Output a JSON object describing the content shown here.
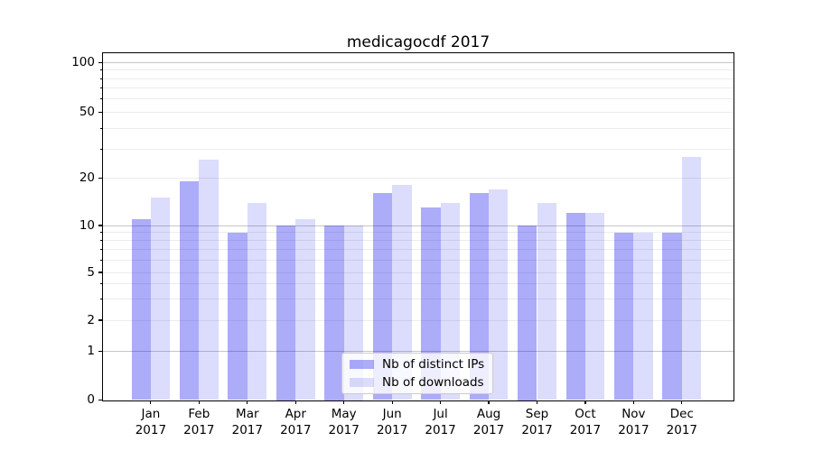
{
  "chart_data": {
    "type": "bar",
    "title": "medicagocdf 2017",
    "categories": [
      "Jan",
      "Feb",
      "Mar",
      "Apr",
      "May",
      "Jun",
      "Jul",
      "Aug",
      "Sep",
      "Oct",
      "Nov",
      "Dec"
    ],
    "year_label": "2017",
    "series": [
      {
        "name": "Nb of distinct IPs",
        "values": [
          11,
          19,
          9,
          10,
          10,
          16,
          13,
          16,
          10,
          12,
          9,
          9
        ],
        "color": "rgba(13,13,235,0.34)"
      },
      {
        "name": "Nb of downloads",
        "values": [
          15,
          26,
          14,
          11,
          10,
          18,
          14,
          17,
          14,
          12,
          9,
          27
        ],
        "color": "rgba(13,13,235,0.145)"
      }
    ],
    "xlabel": "",
    "ylabel": "",
    "yscale": "symlog",
    "ylim": [
      0,
      110
    ],
    "ytick_values": [
      0,
      1,
      2,
      5,
      10,
      20,
      50,
      100
    ],
    "ytick_labels": [
      "0",
      "1",
      "2",
      "5",
      "10",
      "20",
      "50",
      "100"
    ],
    "minor_gridline_values": [
      2,
      3,
      4,
      5,
      6,
      7,
      8,
      9,
      20,
      30,
      40,
      50,
      60,
      70,
      80,
      90
    ],
    "major_gridline_values": [
      1,
      10,
      100
    ],
    "grid": true,
    "legend_position": "lower center inside"
  },
  "colors": {
    "bar_distinct_ips": "rgba(13,13,235,0.34)",
    "bar_downloads": "rgba(13,13,235,0.145)",
    "grid_minor": "#ececec",
    "grid_major": "#c6c6c6",
    "spine": "#000000",
    "legend_border": "#cccccc",
    "legend_background": "rgba(255,255,255,0.8)",
    "text": "#000000"
  }
}
